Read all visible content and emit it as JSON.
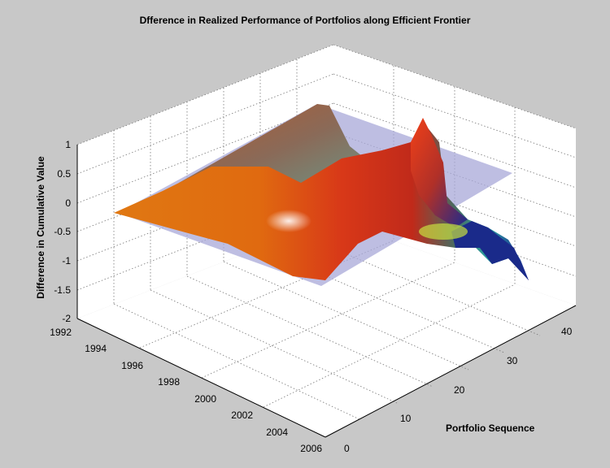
{
  "chart_data": {
    "type": "surface3d",
    "title": "Dfference in Realized Performance of Portfolios along Efficient Frontier",
    "xlabel": "",
    "ylabel": "Portfolio Sequence",
    "zlabel": "Difference in Cumulative Value",
    "x_ticks": [
      "1992",
      "1994",
      "1996",
      "1998",
      "2000",
      "2002",
      "2004",
      "2006"
    ],
    "y_ticks": [
      "0",
      "10",
      "20",
      "30",
      "40"
    ],
    "z_ticks": [
      "1",
      "0.5",
      "0",
      "-0.5",
      "-1",
      "-1.5",
      "-2"
    ],
    "xlim": [
      1992,
      2006
    ],
    "ylim": [
      0,
      40
    ],
    "zlim": [
      -2,
      1
    ],
    "grid": true,
    "reference_plane_z": 0,
    "colors": {
      "background": "#c8c8c8",
      "plot_area": "#ffffff",
      "reference_plane": "#a8a8d8",
      "surface_high": "#e03010",
      "surface_mid": "#e07a10",
      "surface_low": "#1a2090"
    },
    "surface": [
      {
        "x": 1992,
        "y": 40,
        "z": 0.1
      },
      {
        "x": 1996,
        "y": 40,
        "z": 0.3
      },
      {
        "x": 2000,
        "y": 40,
        "z": 0.2
      },
      {
        "x": 2003,
        "y": 40,
        "z": 0.1
      },
      {
        "x": 2005,
        "y": 38,
        "z": 0.7
      },
      {
        "x": 2006,
        "y": 30,
        "z": -0.6
      },
      {
        "x": 2006,
        "y": 20,
        "z": -0.9
      },
      {
        "x": 2006,
        "y": 5,
        "z": -1.3
      },
      {
        "x": 1998,
        "y": 0,
        "z": -0.6
      },
      {
        "x": 1992,
        "y": 0,
        "z": 0.0
      }
    ]
  }
}
